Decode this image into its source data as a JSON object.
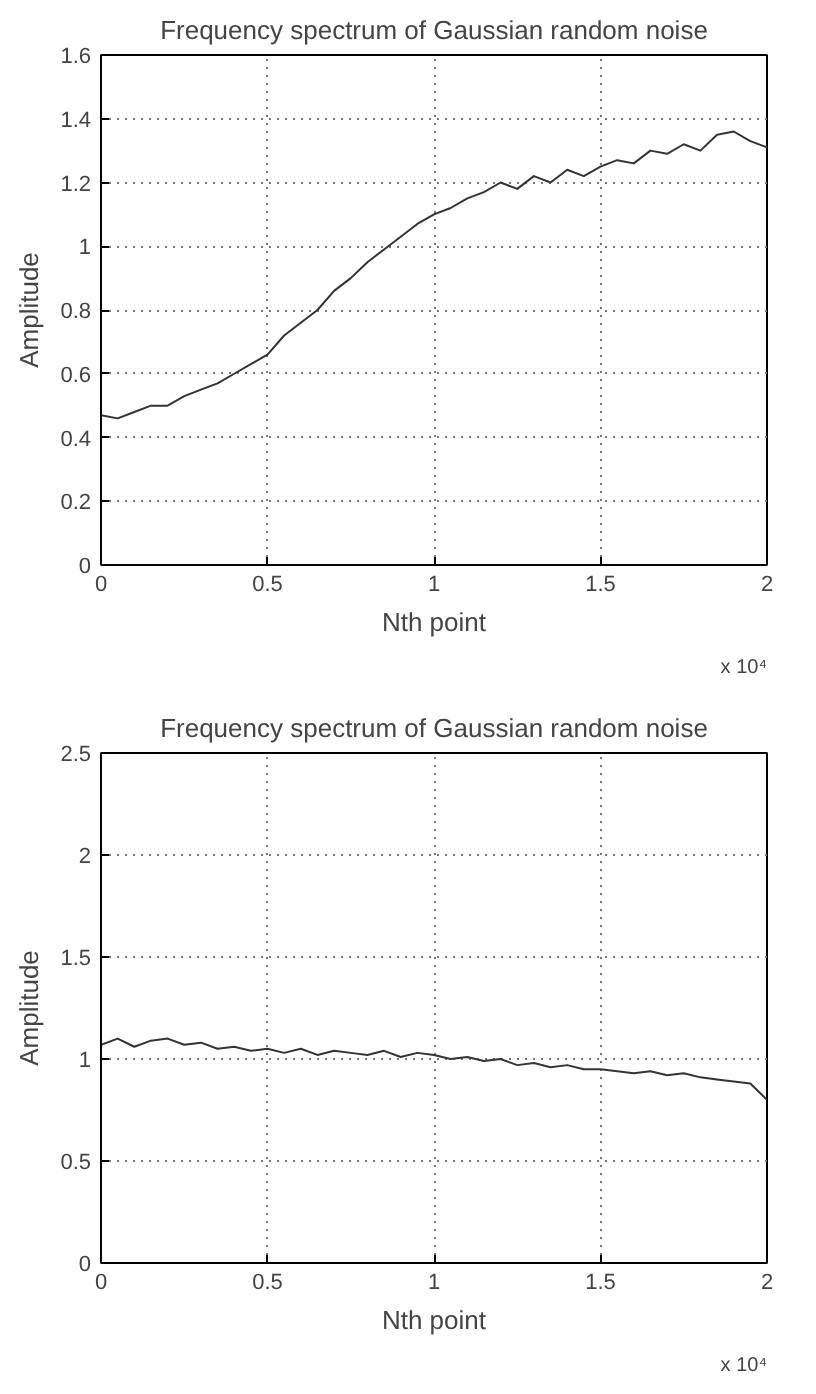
{
  "chart_data": [
    {
      "type": "line",
      "title": "Frequency spectrum of Gaussian random noise",
      "xlabel": "Nth point",
      "ylabel": "Amplitude",
      "x": [
        0,
        0.05,
        0.1,
        0.15,
        0.2,
        0.25,
        0.3,
        0.35,
        0.4,
        0.45,
        0.5,
        0.55,
        0.6,
        0.65,
        0.7,
        0.75,
        0.8,
        0.85,
        0.9,
        0.95,
        1,
        1.05,
        1.1,
        1.15,
        1.2,
        1.25,
        1.3,
        1.35,
        1.4,
        1.45,
        1.5,
        1.55,
        1.6,
        1.65,
        1.7,
        1.75,
        1.8,
        1.85,
        1.9,
        1.95,
        2
      ],
      "series": [
        {
          "color": "#333333",
          "values": [
            0.47,
            0.46,
            0.48,
            0.5,
            0.5,
            0.53,
            0.55,
            0.57,
            0.6,
            0.63,
            0.66,
            0.72,
            0.76,
            0.8,
            0.86,
            0.9,
            0.95,
            0.99,
            1.03,
            1.07,
            1.1,
            1.12,
            1.15,
            1.17,
            1.2,
            1.18,
            1.22,
            1.2,
            1.24,
            1.22,
            1.25,
            1.27,
            1.26,
            1.3,
            1.29,
            1.32,
            1.3,
            1.35,
            1.36,
            1.33,
            1.31
          ]
        }
      ],
      "xlim": [
        0,
        2
      ],
      "ylim": [
        0,
        1.6
      ],
      "xticks": [
        0,
        0.5,
        1,
        1.5,
        2
      ],
      "yticks": [
        0,
        0.2,
        0.4,
        0.6,
        0.8,
        1,
        1.2,
        1.4,
        1.6
      ],
      "grid": true,
      "annotations": [
        "x 10⁴"
      ]
    },
    {
      "type": "line",
      "title": "Frequency spectrum of Gaussian random noise",
      "xlabel": "Nth point",
      "ylabel": "Amplitude",
      "x": [
        0,
        0.05,
        0.1,
        0.15,
        0.2,
        0.25,
        0.3,
        0.35,
        0.4,
        0.45,
        0.5,
        0.55,
        0.6,
        0.65,
        0.7,
        0.75,
        0.8,
        0.85,
        0.9,
        0.95,
        1,
        1.05,
        1.1,
        1.15,
        1.2,
        1.25,
        1.3,
        1.35,
        1.4,
        1.45,
        1.5,
        1.55,
        1.6,
        1.65,
        1.7,
        1.75,
        1.8,
        1.85,
        1.9,
        1.95,
        2
      ],
      "series": [
        {
          "color": "#333333",
          "values": [
            1.07,
            1.1,
            1.06,
            1.09,
            1.1,
            1.07,
            1.08,
            1.05,
            1.06,
            1.04,
            1.05,
            1.03,
            1.05,
            1.02,
            1.04,
            1.03,
            1.02,
            1.04,
            1.01,
            1.03,
            1.02,
            1.0,
            1.01,
            0.99,
            1.0,
            0.97,
            0.98,
            0.96,
            0.97,
            0.95,
            0.95,
            0.94,
            0.93,
            0.94,
            0.92,
            0.93,
            0.91,
            0.9,
            0.89,
            0.88,
            0.8
          ]
        }
      ],
      "xlim": [
        0,
        2
      ],
      "ylim": [
        0,
        2.5
      ],
      "xticks": [
        0,
        0.5,
        1,
        1.5,
        2
      ],
      "yticks": [
        0,
        0.5,
        1,
        1.5,
        2,
        2.5
      ],
      "grid": true,
      "annotations": [
        "x 10⁴"
      ]
    }
  ]
}
